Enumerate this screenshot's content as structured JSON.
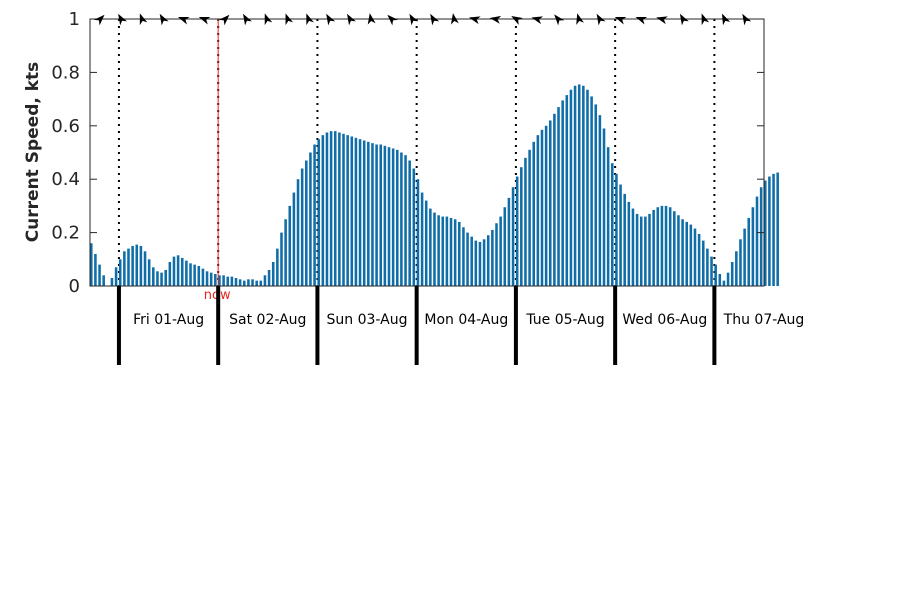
{
  "chart_data": {
    "type": "bar",
    "ylabel": "Current Speed, kts",
    "ylim": [
      0,
      1
    ],
    "yticks": [
      "0",
      "0.2",
      "0.4",
      "0.6",
      "0.8",
      "1"
    ],
    "xlim_hours": [
      0,
      163
    ],
    "grid": "dotted vertical lines at midnight",
    "days": [
      {
        "label": "Fri 01-Aug",
        "start_hour": 7
      },
      {
        "label": "Sat 02-Aug",
        "start_hour": 31
      },
      {
        "label": "Sun 03-Aug",
        "start_hour": 55
      },
      {
        "label": "Mon 04-Aug",
        "start_hour": 79
      },
      {
        "label": "Tue 05-Aug",
        "start_hour": 103
      },
      {
        "label": "Wed 06-Aug",
        "start_hour": 127
      },
      {
        "label": "Thu 07-Aug",
        "start_hour": 151
      }
    ],
    "now": {
      "label": "now",
      "hour": 31,
      "color": "#e8271f"
    },
    "bar_color": "#0f6ea8",
    "values": [
      0.16,
      0.12,
      0.08,
      0.04,
      0.0,
      0.03,
      0.07,
      0.1,
      0.13,
      0.14,
      0.15,
      0.155,
      0.15,
      0.13,
      0.1,
      0.07,
      0.055,
      0.05,
      0.06,
      0.09,
      0.11,
      0.115,
      0.105,
      0.095,
      0.085,
      0.08,
      0.075,
      0.065,
      0.055,
      0.05,
      0.045,
      0.04,
      0.04,
      0.035,
      0.035,
      0.03,
      0.025,
      0.02,
      0.025,
      0.025,
      0.02,
      0.02,
      0.04,
      0.06,
      0.09,
      0.14,
      0.2,
      0.25,
      0.3,
      0.35,
      0.4,
      0.44,
      0.47,
      0.5,
      0.53,
      0.55,
      0.565,
      0.575,
      0.58,
      0.58,
      0.575,
      0.57,
      0.565,
      0.56,
      0.555,
      0.55,
      0.545,
      0.54,
      0.535,
      0.53,
      0.53,
      0.525,
      0.52,
      0.515,
      0.51,
      0.5,
      0.49,
      0.47,
      0.44,
      0.4,
      0.35,
      0.32,
      0.29,
      0.275,
      0.265,
      0.26,
      0.26,
      0.255,
      0.25,
      0.24,
      0.22,
      0.2,
      0.185,
      0.17,
      0.165,
      0.175,
      0.19,
      0.21,
      0.235,
      0.26,
      0.295,
      0.33,
      0.37,
      0.41,
      0.445,
      0.48,
      0.51,
      0.54,
      0.565,
      0.585,
      0.6,
      0.62,
      0.645,
      0.67,
      0.695,
      0.715,
      0.735,
      0.75,
      0.755,
      0.75,
      0.735,
      0.71,
      0.68,
      0.64,
      0.59,
      0.52,
      0.46,
      0.42,
      0.38,
      0.345,
      0.315,
      0.29,
      0.27,
      0.26,
      0.26,
      0.27,
      0.285,
      0.295,
      0.3,
      0.3,
      0.295,
      0.28,
      0.265,
      0.25,
      0.24,
      0.23,
      0.215,
      0.195,
      0.17,
      0.14,
      0.11,
      0.08,
      0.045,
      0.02,
      0.05,
      0.09,
      0.13,
      0.175,
      0.215,
      0.255,
      0.295,
      0.335,
      0.37,
      0.395,
      0.41,
      0.42,
      0.425
    ],
    "direction_arrows_deg": [
      45,
      330,
      340,
      330,
      290,
      290,
      45,
      330,
      340,
      340,
      340,
      330,
      330,
      350,
      315,
      330,
      330,
      350,
      285,
      280,
      300,
      285,
      320,
      345,
      330,
      290,
      290,
      285,
      330,
      340,
      335,
      330
    ]
  }
}
